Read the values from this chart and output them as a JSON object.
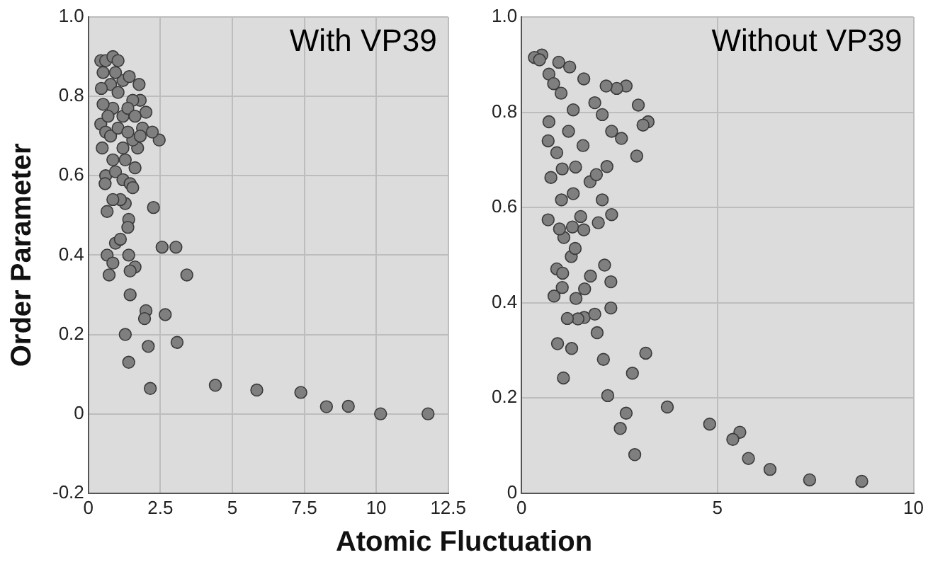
{
  "chart_data": [
    {
      "type": "scatter",
      "title": "With VP39",
      "ylabel": "Order Parameter",
      "xlabel": "Atomic Fluctuation",
      "xlim": [
        0,
        12.5
      ],
      "xticks": [
        0,
        2.5,
        5,
        7.5,
        10,
        12.5
      ],
      "ylim": [
        -0.2,
        1
      ],
      "yticks": [
        -0.2,
        0,
        0.2,
        0.4,
        0.6,
        0.8,
        {
          "value": 1,
          "label": "1.0"
        }
      ],
      "grid": true,
      "legend": false,
      "marker": "circle",
      "series": [
        {
          "color": "#7f7f7f",
          "x": [
            2.15,
            4.41,
            5.85,
            7.38,
            8.27,
            9.03,
            10.15,
            11.8,
            2.56,
            3.04,
            3.42,
            2.26,
            2.46,
            2.67,
            2.0,
            1.95,
            2.08,
            3.08,
            1.45,
            1.28,
            1.4,
            1.62,
            1.4,
            1.45,
            0.65,
            0.85,
            0.72,
            0.94,
            1.11,
            0.65,
            1.4,
            1.37,
            1.28,
            0.43,
            0.6,
            0.85,
            1.03,
            0.51,
            0.77,
            1.2,
            1.42,
            1.76,
            1.8,
            2.0,
            1.88,
            2.22,
            1.71,
            1.54,
            1.2,
            0.85,
            0.51,
            0.43,
            0.6,
            0.48,
            0.77,
            1.03,
            1.37,
            0.6,
            0.58,
            0.94,
            1.2,
            1.45,
            1.62,
            1.28,
            0.85,
            1.2,
            1.54,
            1.11,
            0.85,
            1.54,
            1.03,
            0.68,
            1.37,
            1.62,
            1.8,
            0.94,
            0.45
          ],
          "values": [
            0.064,
            0.072,
            0.06,
            0.054,
            0.018,
            0.019,
            0,
            0,
            0.42,
            0.42,
            0.35,
            0.52,
            0.69,
            0.25,
            0.26,
            0.24,
            0.17,
            0.18,
            0.3,
            0.2,
            0.13,
            0.37,
            0.4,
            0.36,
            0.4,
            0.38,
            0.35,
            0.43,
            0.44,
            0.51,
            0.49,
            0.47,
            0.53,
            0.89,
            0.89,
            0.9,
            0.89,
            0.86,
            0.83,
            0.84,
            0.85,
            0.83,
            0.79,
            0.76,
            0.72,
            0.71,
            0.67,
            0.69,
            0.75,
            0.77,
            0.78,
            0.73,
            0.71,
            0.67,
            0.7,
            0.72,
            0.71,
            0.6,
            0.58,
            0.61,
            0.59,
            0.58,
            0.62,
            0.64,
            0.64,
            0.67,
            0.57,
            0.54,
            0.54,
            0.79,
            0.81,
            0.75,
            0.77,
            0.75,
            0.7,
            0.86,
            0.82
          ]
        }
      ]
    },
    {
      "type": "scatter",
      "title": "Without VP39",
      "xlim": [
        0,
        10
      ],
      "xticks": [
        0,
        5,
        10
      ],
      "ylim": [
        0,
        1
      ],
      "yticks": [
        0,
        0.2,
        0.4,
        0.6,
        0.8,
        {
          "value": 1,
          "label": "1.0"
        }
      ],
      "grid": true,
      "legend": false,
      "marker": "circle",
      "series": [
        {
          "color": "#7f7f7f",
          "x": [
            8.68,
            7.35,
            6.34,
            5.79,
            5.57,
            5.39,
            4.8,
            3.72,
            3.17,
            2.83,
            2.67,
            2.52,
            2.89,
            2.2,
            2.09,
            1.07,
            0.92,
            1.28,
            1.6,
            1.93,
            1.87,
            2.28,
            2.28,
            2.12,
            1.76,
            1.61,
            1.39,
            1.44,
            1.17,
            0.83,
            1.04,
            0.9,
            1.05,
            1.27,
            1.37,
            1.3,
            1.08,
            0.97,
            0.68,
            1.59,
            1.51,
            1.96,
            2.3,
            2.06,
            1.32,
            1.02,
            0.75,
            1.04,
            1.38,
            1.75,
            1.91,
            2.18,
            2.94,
            3.23,
            3.1,
            2.98,
            2.67,
            2.43,
            2.16,
            2.55,
            2.3,
            2.06,
            1.87,
            1.59,
            1.23,
            0.95,
            0.52,
            0.33,
            0.7,
            1.01,
            1.32,
            0.7,
            0.68,
            0.9,
            1.2,
            1.57,
            0.46,
            0.82
          ],
          "values": [
            0.025,
            0.028,
            0.05,
            0.073,
            0.128,
            0.113,
            0.145,
            0.181,
            0.294,
            0.252,
            0.168,
            0.136,
            0.081,
            0.205,
            0.281,
            0.242,
            0.314,
            0.304,
            0.369,
            0.337,
            0.376,
            0.389,
            0.444,
            0.479,
            0.456,
            0.429,
            0.409,
            0.366,
            0.367,
            0.414,
            0.432,
            0.471,
            0.462,
            0.497,
            0.514,
            0.559,
            0.537,
            0.555,
            0.574,
            0.553,
            0.581,
            0.568,
            0.585,
            0.616,
            0.629,
            0.616,
            0.663,
            0.681,
            0.685,
            0.654,
            0.669,
            0.686,
            0.708,
            0.78,
            0.773,
            0.815,
            0.855,
            0.85,
            0.855,
            0.745,
            0.76,
            0.795,
            0.82,
            0.87,
            0.895,
            0.905,
            0.92,
            0.915,
            0.88,
            0.84,
            0.805,
            0.78,
            0.74,
            0.715,
            0.76,
            0.73,
            0.91,
            0.86
          ]
        }
      ]
    }
  ]
}
